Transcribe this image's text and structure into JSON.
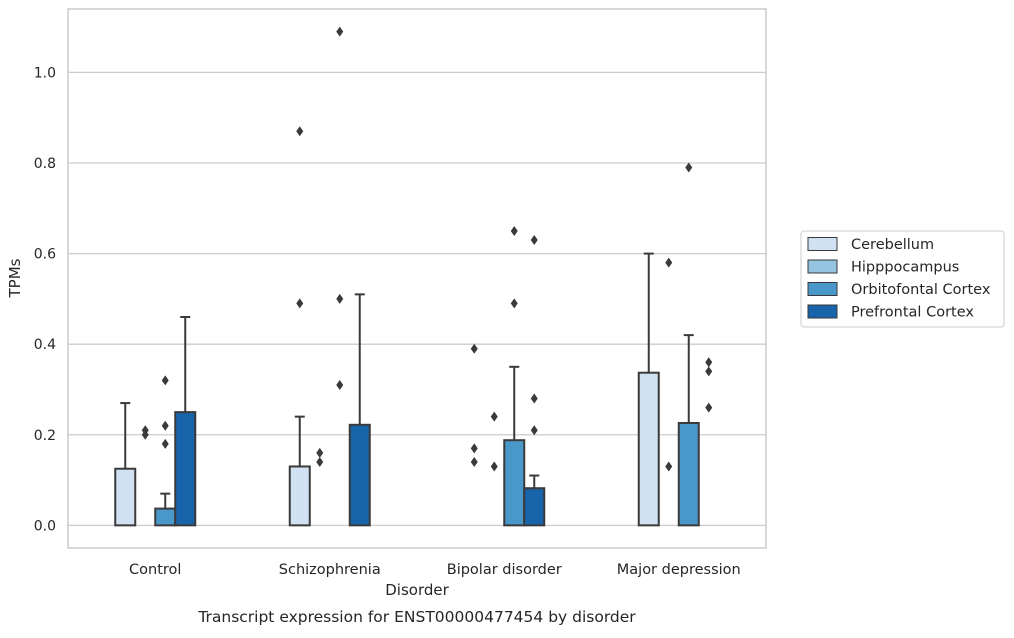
{
  "chart_data": {
    "type": "bar",
    "title": "",
    "caption": "Transcript expression for ENST00000477454 by disorder",
    "xlabel": "Disorder",
    "ylabel": "TPMs",
    "ylim": [
      -0.05,
      1.14
    ],
    "yticks": [
      0.0,
      0.2,
      0.4,
      0.6,
      0.8,
      1.0
    ],
    "ytick_labels": [
      "0.0",
      "0.2",
      "0.4",
      "0.6",
      "0.8",
      "1.0"
    ],
    "grid": "horizontal",
    "legend_position": "right",
    "categories": [
      "Control",
      "Schizophrenia",
      "Bipolar disorder",
      "Major depression"
    ],
    "series": [
      {
        "name": "Cerebellum",
        "color": "#d0e1f2",
        "values": [
          0.125,
          0.13,
          0.0,
          0.337
        ],
        "whisker_high": [
          0.27,
          0.24,
          0.0,
          0.6
        ],
        "outliers": [
          [],
          [
            0.49,
            0.87
          ],
          [
            0.14,
            0.17,
            0.39
          ],
          []
        ]
      },
      {
        "name": "Hipppocampus",
        "color": "#94c4df",
        "values": [
          0.0,
          0.0,
          0.0,
          0.0
        ],
        "whisker_high": [
          0.0,
          0.0,
          0.0,
          0.0
        ],
        "outliers": [
          [
            0.2,
            0.21
          ],
          [
            0.14,
            0.16
          ],
          [
            0.13,
            0.24
          ],
          [
            0.13,
            0.58
          ]
        ]
      },
      {
        "name": "Orbitofontal Cortex",
        "color": "#4a98c9",
        "values": [
          0.037,
          0.0,
          0.188,
          0.226
        ],
        "whisker_high": [
          0.07,
          0.0,
          0.35,
          0.42
        ],
        "outliers": [
          [
            0.18,
            0.22,
            0.32
          ],
          [
            0.31,
            0.5,
            1.09
          ],
          [
            0.49,
            0.65
          ],
          [
            0.79
          ]
        ]
      },
      {
        "name": "Prefrontal Cortex",
        "color": "#1764ab",
        "values": [
          0.25,
          0.222,
          0.082,
          0.0
        ],
        "whisker_high": [
          0.46,
          0.51,
          0.11,
          0.0
        ],
        "outliers": [
          [],
          [],
          [
            0.21,
            0.28,
            0.63
          ],
          [
            0.26,
            0.34,
            0.36
          ]
        ]
      }
    ]
  }
}
